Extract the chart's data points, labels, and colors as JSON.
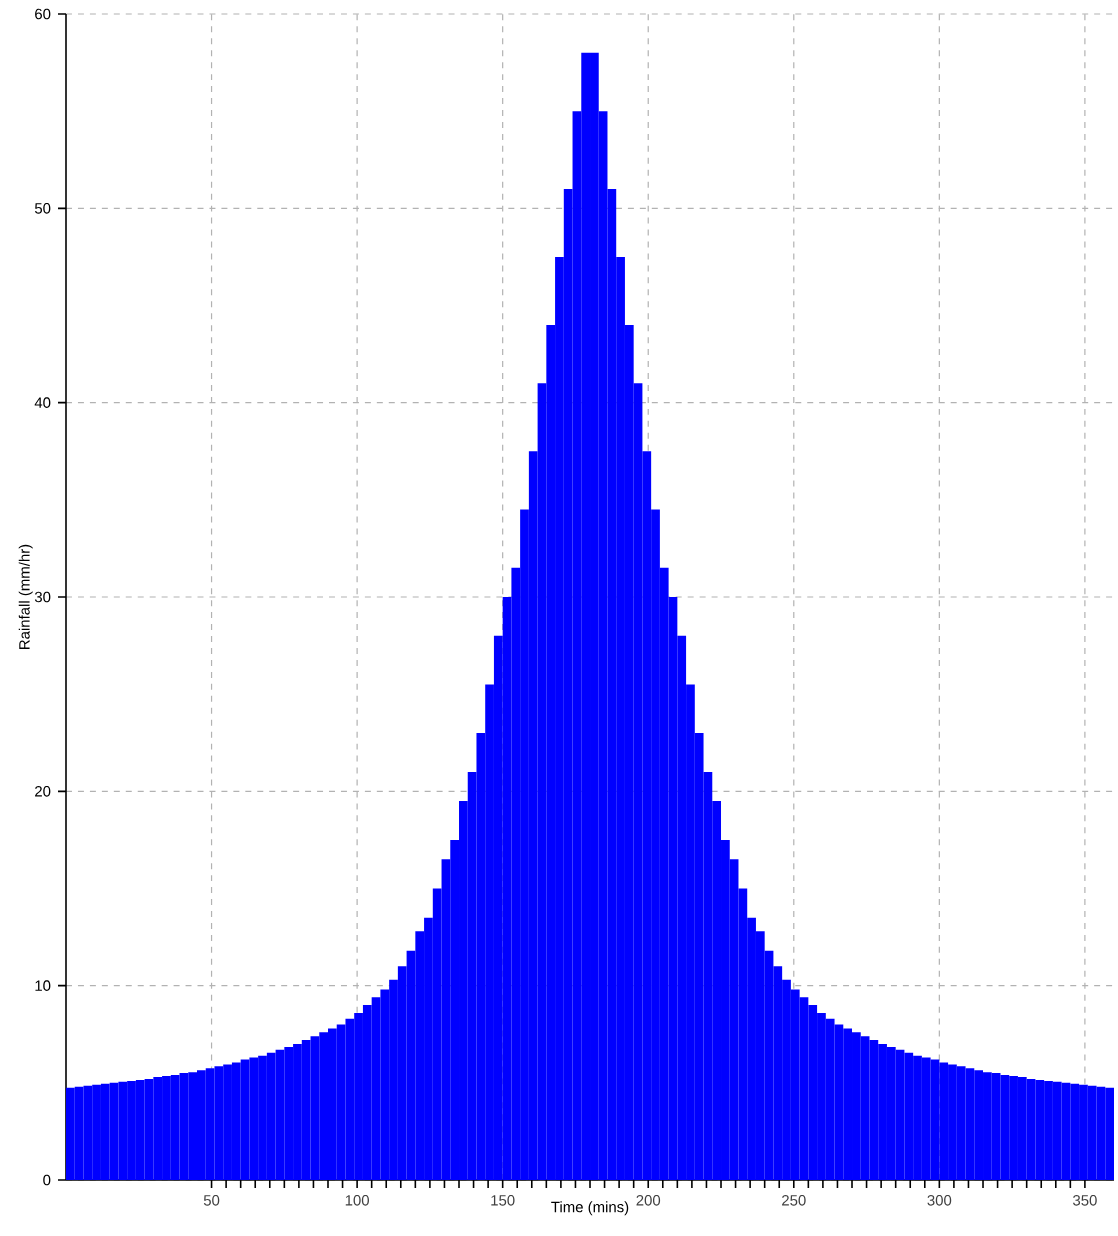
{
  "chart_data": {
    "type": "histogram",
    "xlabel": "Time (mins)",
    "ylabel": "Rainfall (mm/hr)",
    "bins": [
      0,
      3,
      6,
      9,
      12,
      15,
      18,
      21,
      24,
      27,
      30,
      33,
      36,
      39,
      42,
      45,
      48,
      51,
      54,
      57,
      60,
      63,
      66,
      69,
      72,
      75,
      78,
      81,
      84,
      87,
      90,
      93,
      96,
      99,
      102,
      105,
      108,
      111,
      114,
      117,
      120,
      123,
      126,
      129,
      132,
      135,
      138,
      141,
      144,
      147,
      150,
      153,
      156,
      159,
      162,
      165,
      168,
      171,
      174,
      177,
      180,
      183,
      186,
      189,
      192,
      195,
      198,
      201,
      204,
      207,
      210,
      213,
      216,
      219,
      222,
      225,
      228,
      231,
      234,
      237,
      240,
      243,
      246,
      249,
      252,
      255,
      258,
      261,
      264,
      267,
      270,
      273,
      276,
      279,
      282,
      285,
      288,
      291,
      294,
      297,
      300,
      303,
      306,
      309,
      312,
      315,
      318,
      321,
      324,
      327,
      330,
      333,
      336,
      339,
      342,
      345,
      348,
      351,
      354,
      357,
      360
    ],
    "values": [
      4.75,
      4.8,
      4.85,
      4.9,
      4.95,
      5.0,
      5.05,
      5.1,
      5.15,
      5.2,
      5.3,
      5.35,
      5.4,
      5.5,
      5.55,
      5.65,
      5.75,
      5.85,
      5.95,
      6.05,
      6.2,
      6.3,
      6.4,
      6.55,
      6.7,
      6.85,
      7.0,
      7.2,
      7.4,
      7.6,
      7.8,
      8.0,
      8.3,
      8.6,
      9.0,
      9.4,
      9.8,
      10.3,
      11,
      11.8,
      12.8,
      13.5,
      15,
      16.5,
      17.5,
      19.5,
      21,
      23,
      25.5,
      28,
      30,
      31.5,
      34.5,
      37.5,
      41,
      44,
      47.5,
      51,
      55,
      58,
      58,
      55,
      51,
      47.5,
      44,
      41,
      37.5,
      34.5,
      31.5,
      30,
      28,
      25.5,
      23,
      21,
      19.5,
      17.5,
      16.5,
      15,
      13.5,
      12.8,
      11.8,
      11,
      10.3,
      9.8,
      9.4,
      9.0,
      8.6,
      8.3,
      8.0,
      7.8,
      7.6,
      7.4,
      7.2,
      7.0,
      6.85,
      6.7,
      6.55,
      6.4,
      6.3,
      6.2,
      6.05,
      5.95,
      5.85,
      5.75,
      5.65,
      5.55,
      5.5,
      5.4,
      5.35,
      5.3,
      5.2,
      5.15,
      5.1,
      5.05,
      5.0,
      4.95,
      4.9,
      4.85,
      4.8,
      4.75
    ],
    "color": "#0000ff",
    "xlim": [
      0,
      360
    ],
    "ylim": [
      0,
      60
    ],
    "xticks": [
      50,
      100,
      150,
      200,
      250,
      300,
      350
    ],
    "yticks": [
      0,
      10,
      20,
      30,
      40,
      50,
      60
    ],
    "grid": true
  }
}
